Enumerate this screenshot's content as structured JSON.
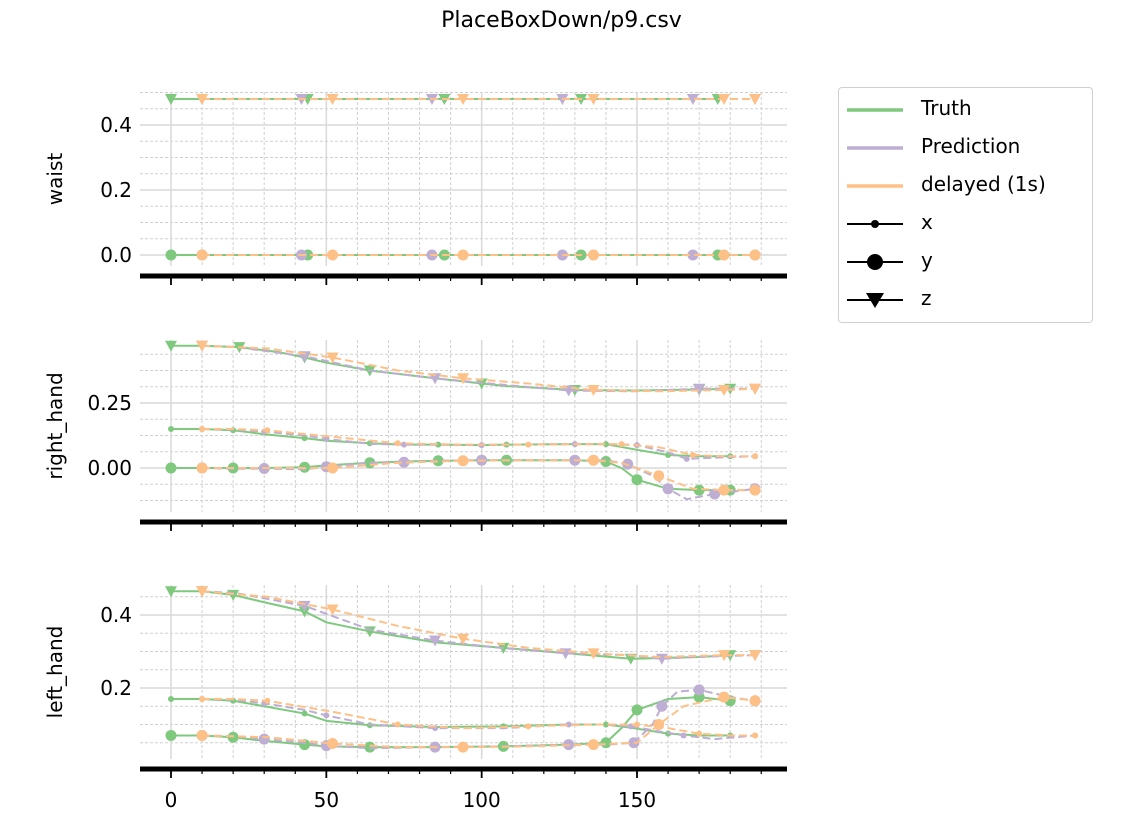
{
  "title": "PlaceBoxDown/p9.csv",
  "colors": {
    "truth": "#7fc97f",
    "prediction": "#beaed4",
    "delayed": "#fdc086",
    "grid_major": "#d9d9d9",
    "grid_minor": "#d0d0d0",
    "axis": "#000000"
  },
  "legend": {
    "items": [
      {
        "label": "Truth",
        "kind": "line",
        "color": "#7fc97f"
      },
      {
        "label": "Prediction",
        "kind": "line",
        "color": "#beaed4"
      },
      {
        "label": "delayed (1s)",
        "kind": "line",
        "color": "#fdc086"
      },
      {
        "label": "x",
        "kind": "marker",
        "marker": "small-dot"
      },
      {
        "label": "y",
        "kind": "marker",
        "marker": "big-dot"
      },
      {
        "label": "z",
        "kind": "marker",
        "marker": "triangle-down"
      }
    ]
  },
  "chart_data": {
    "type": "line",
    "title": "PlaceBoxDown/p9.csv",
    "xlabel": "",
    "x_ticks": [
      0,
      50,
      100,
      150
    ],
    "xlim": [
      -10,
      198
    ],
    "grid": true,
    "legend_position": "outside upper right",
    "subplots": [
      {
        "ylabel": "waist",
        "y_ticks": [
          0.0,
          0.2,
          0.4
        ],
        "y_tick_labels": [
          "0.0",
          "0.2",
          "0.4"
        ],
        "ylim": [
          -0.02,
          0.52
        ],
        "series": [
          {
            "name": "Truth x",
            "style": "truth",
            "marker": "x",
            "x": [
              0,
              22,
              44,
              66,
              88,
              110,
              132,
              154,
              176,
              188
            ],
            "y": [
              0.0,
              0.0,
              0.0,
              0.0,
              0.0,
              0.0,
              0.0,
              0.0,
              0.0,
              0.0
            ]
          },
          {
            "name": "Truth y",
            "style": "truth",
            "marker": "y",
            "x": [
              0,
              22,
              44,
              66,
              88,
              110,
              132,
              154,
              176
            ],
            "y": [
              0.0,
              0.0,
              0.0,
              0.0,
              0.0,
              0.0,
              0.0,
              0.0,
              0.0
            ]
          },
          {
            "name": "Truth z",
            "style": "truth",
            "marker": "z",
            "x": [
              0,
              22,
              44,
              66,
              88,
              110,
              132,
              154,
              176
            ],
            "y": [
              0.48,
              0.48,
              0.48,
              0.48,
              0.48,
              0.48,
              0.48,
              0.48,
              0.48
            ]
          },
          {
            "name": "Prediction y",
            "style": "prediction",
            "marker": "y",
            "x": [
              10,
              21,
              42,
              63,
              84,
              105,
              126,
              147,
              168,
              188
            ],
            "y": [
              0.0,
              0.0,
              0.0,
              0.0,
              0.0,
              0.0,
              0.0,
              0.0,
              0.0,
              0.0
            ]
          },
          {
            "name": "Prediction z",
            "style": "prediction",
            "marker": "z",
            "x": [
              10,
              21,
              42,
              63,
              84,
              105,
              126,
              147,
              168,
              188
            ],
            "y": [
              0.48,
              0.48,
              0.48,
              0.48,
              0.48,
              0.48,
              0.48,
              0.48,
              0.48,
              0.48
            ]
          },
          {
            "name": "delayed y",
            "style": "delayed",
            "marker": "y",
            "x": [
              10,
              31,
              52,
              73,
              94,
              115,
              136,
              157,
              178,
              188
            ],
            "y": [
              0.0,
              0.0,
              0.0,
              0.0,
              0.0,
              0.0,
              0.0,
              0.0,
              0.0,
              0.0
            ]
          },
          {
            "name": "delayed z",
            "style": "delayed",
            "marker": "z",
            "x": [
              10,
              31,
              52,
              73,
              94,
              115,
              136,
              157,
              178,
              188
            ],
            "y": [
              0.48,
              0.48,
              0.48,
              0.48,
              0.48,
              0.48,
              0.48,
              0.48,
              0.48,
              0.48
            ]
          }
        ]
      },
      {
        "ylabel": "right_hand",
        "y_ticks": [
          0.0,
          0.25
        ],
        "y_tick_labels": [
          "0.00",
          "0.25"
        ],
        "ylim": [
          -0.18,
          0.5
        ],
        "series": [
          {
            "name": "Truth x",
            "style": "truth",
            "marker": "x",
            "x": [
              0,
              10,
              20,
              30,
              43,
              50,
              64,
              75,
              86,
              100,
              108,
              130,
              140,
              150,
              160,
              170,
              180
            ],
            "y": [
              0.15,
              0.15,
              0.145,
              0.13,
              0.115,
              0.105,
              0.095,
              0.09,
              0.09,
              0.088,
              0.09,
              0.092,
              0.092,
              0.07,
              0.05,
              0.045,
              0.045
            ]
          },
          {
            "name": "Truth y",
            "style": "truth",
            "marker": "y",
            "x": [
              0,
              10,
              20,
              30,
              43,
              50,
              64,
              75,
              86,
              100,
              108,
              130,
              140,
              145,
              150,
              160,
              170,
              180
            ],
            "y": [
              0.0,
              0.0,
              0.0,
              0.0,
              0.003,
              0.01,
              0.02,
              0.025,
              0.028,
              0.03,
              0.03,
              0.03,
              0.025,
              0.0,
              -0.045,
              -0.08,
              -0.085,
              -0.085
            ]
          },
          {
            "name": "Truth z",
            "style": "truth",
            "marker": "z",
            "x": [
              0,
              10,
              22,
              35,
              43,
              50,
              64,
              85,
              100,
              108,
              130,
              150,
              170,
              180
            ],
            "y": [
              0.47,
              0.47,
              0.465,
              0.445,
              0.425,
              0.405,
              0.375,
              0.345,
              0.325,
              0.315,
              0.3,
              0.298,
              0.302,
              0.305
            ]
          },
          {
            "name": "Prediction x",
            "style": "prediction",
            "marker": "x",
            "x": [
              10,
              20,
              30,
              43,
              50,
              64,
              75,
              86,
              100,
              108,
              130,
              140,
              150,
              160,
              166,
              175,
              188
            ],
            "y": [
              0.15,
              0.148,
              0.14,
              0.125,
              0.112,
              0.093,
              0.09,
              0.09,
              0.088,
              0.09,
              0.092,
              0.092,
              0.088,
              0.06,
              0.035,
              0.04,
              0.045
            ]
          },
          {
            "name": "Prediction y",
            "style": "prediction",
            "marker": "y",
            "x": [
              10,
              20,
              30,
              43,
              50,
              64,
              75,
              86,
              100,
              108,
              130,
              140,
              147,
              155,
              160,
              166,
              175,
              188
            ],
            "y": [
              0.0,
              -0.003,
              -0.002,
              -0.005,
              0.005,
              0.02,
              0.022,
              0.028,
              0.03,
              0.03,
              0.03,
              0.03,
              0.015,
              -0.03,
              -0.08,
              -0.12,
              -0.1,
              -0.08
            ]
          },
          {
            "name": "Prediction z",
            "style": "prediction",
            "marker": "z",
            "x": [
              10,
              21,
              43,
              64,
              85,
              107,
              128,
              149,
              170,
              188
            ],
            "y": [
              0.47,
              0.465,
              0.43,
              0.375,
              0.345,
              0.32,
              0.298,
              0.295,
              0.305,
              0.305
            ]
          },
          {
            "name": "delayed x",
            "style": "delayed",
            "marker": "x",
            "x": [
              10,
              20,
              31,
              52,
              73,
              94,
              115,
              136,
              145,
              157,
              168,
              178,
              188
            ],
            "y": [
              0.15,
              0.15,
              0.145,
              0.12,
              0.095,
              0.09,
              0.09,
              0.092,
              0.092,
              0.08,
              0.05,
              0.045,
              0.045
            ]
          },
          {
            "name": "delayed y",
            "style": "delayed",
            "marker": "y",
            "x": [
              10,
              31,
              52,
              73,
              94,
              115,
              136,
              145,
              157,
              168,
              178,
              188
            ],
            "y": [
              0.0,
              0.0,
              0.0,
              0.02,
              0.028,
              0.03,
              0.03,
              0.02,
              -0.03,
              -0.08,
              -0.085,
              -0.085
            ]
          },
          {
            "name": "delayed z",
            "style": "delayed",
            "marker": "z",
            "x": [
              10,
              31,
              52,
              73,
              94,
              115,
              136,
              157,
              178,
              188
            ],
            "y": [
              0.47,
              0.46,
              0.425,
              0.375,
              0.345,
              0.325,
              0.3,
              0.295,
              0.3,
              0.305
            ]
          }
        ]
      },
      {
        "ylabel": "left_hand",
        "y_ticks": [
          0.2,
          0.4
        ],
        "y_tick_labels": [
          "0.2",
          "0.4"
        ],
        "ylim": [
          0.03,
          0.49
        ],
        "series": [
          {
            "name": "Truth x",
            "style": "truth",
            "marker": "x",
            "x": [
              0,
              10,
              20,
              30,
              43,
              50,
              64,
              85,
              107,
              128,
              140,
              149,
              160,
              170,
              180
            ],
            "y": [
              0.17,
              0.17,
              0.165,
              0.15,
              0.13,
              0.11,
              0.098,
              0.093,
              0.095,
              0.1,
              0.1,
              0.09,
              0.075,
              0.07,
              0.07
            ]
          },
          {
            "name": "Truth y",
            "style": "truth",
            "marker": "y",
            "x": [
              0,
              10,
              20,
              30,
              43,
              50,
              64,
              85,
              107,
              128,
              140,
              145,
              150,
              160,
              170,
              180
            ],
            "y": [
              0.07,
              0.07,
              0.065,
              0.055,
              0.045,
              0.04,
              0.038,
              0.038,
              0.04,
              0.045,
              0.05,
              0.09,
              0.14,
              0.17,
              0.175,
              0.165
            ]
          },
          {
            "name": "Truth z",
            "style": "truth",
            "marker": "z",
            "x": [
              0,
              10,
              20,
              30,
              43,
              50,
              64,
              85,
              107,
              128,
              148,
              170,
              180
            ],
            "y": [
              0.465,
              0.465,
              0.455,
              0.435,
              0.41,
              0.38,
              0.355,
              0.325,
              0.31,
              0.295,
              0.28,
              0.285,
              0.29
            ]
          },
          {
            "name": "Prediction x",
            "style": "prediction",
            "marker": "x",
            "x": [
              10,
              20,
              30,
              43,
              50,
              64,
              85,
              107,
              128,
              140,
              148,
              158,
              165,
              175,
              188
            ],
            "y": [
              0.17,
              0.168,
              0.158,
              0.14,
              0.125,
              0.1,
              0.09,
              0.09,
              0.1,
              0.1,
              0.095,
              0.08,
              0.07,
              0.06,
              0.07
            ]
          },
          {
            "name": "Prediction y",
            "style": "prediction",
            "marker": "y",
            "x": [
              10,
              21,
              30,
              43,
              50,
              64,
              85,
              107,
              128,
              140,
              149,
              155,
              158,
              163,
              170,
              180,
              188
            ],
            "y": [
              0.07,
              0.068,
              0.06,
              0.05,
              0.042,
              0.035,
              0.038,
              0.04,
              0.045,
              0.045,
              0.05,
              0.1,
              0.15,
              0.19,
              0.195,
              0.175,
              0.165
            ]
          },
          {
            "name": "Prediction z",
            "style": "prediction",
            "marker": "z",
            "x": [
              10,
              21,
              43,
              64,
              85,
              106,
              127,
              148,
              158,
              169,
              188
            ],
            "y": [
              0.465,
              0.46,
              0.425,
              0.36,
              0.33,
              0.31,
              0.295,
              0.29,
              0.28,
              0.285,
              0.29
            ]
          },
          {
            "name": "delayed x",
            "style": "delayed",
            "marker": "x",
            "x": [
              10,
              20,
              31,
              52,
              73,
              94,
              115,
              136,
              150,
              160,
              170,
              180,
              188
            ],
            "y": [
              0.17,
              0.17,
              0.165,
              0.135,
              0.1,
              0.09,
              0.095,
              0.1,
              0.1,
              0.09,
              0.075,
              0.07,
              0.07
            ]
          },
          {
            "name": "delayed y",
            "style": "delayed",
            "marker": "y",
            "x": [
              10,
              31,
              52,
              73,
              94,
              115,
              136,
              150,
              157,
              165,
              178,
              188
            ],
            "y": [
              0.07,
              0.065,
              0.048,
              0.038,
              0.038,
              0.04,
              0.045,
              0.05,
              0.1,
              0.15,
              0.175,
              0.165
            ]
          },
          {
            "name": "delayed z",
            "style": "delayed",
            "marker": "z",
            "x": [
              10,
              31,
              52,
              73,
              94,
              115,
              136,
              157,
              178,
              188
            ],
            "y": [
              0.465,
              0.45,
              0.415,
              0.37,
              0.335,
              0.31,
              0.295,
              0.285,
              0.29,
              0.29
            ]
          }
        ]
      }
    ]
  }
}
